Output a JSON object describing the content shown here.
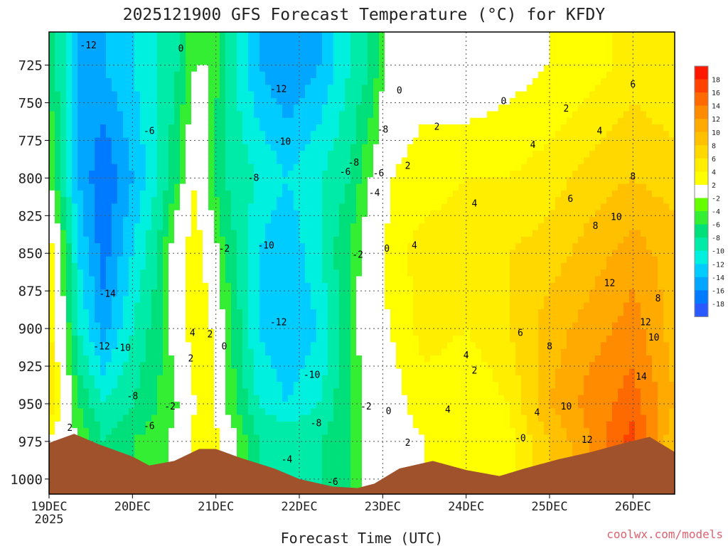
{
  "chart_data": {
    "type": "heatmap",
    "title": "2025121900 GFS Forecast Temperature (°C) for KFDY",
    "xlabel": "Forecast Time (UTC)",
    "ylabel": "",
    "credit": "coolwx.com/models",
    "x_tick_labels": [
      "19DEC",
      "20DEC",
      "21DEC",
      "22DEC",
      "23DEC",
      "24DEC",
      "25DEC",
      "26DEC"
    ],
    "x_year_label": "2025",
    "x_days_from_19dec": [
      0,
      1,
      2,
      3,
      4,
      5,
      6,
      7
    ],
    "xlim_days": [
      0,
      7.5
    ],
    "y_tick_labels": [
      "725",
      "750",
      "775",
      "800",
      "825",
      "850",
      "875",
      "900",
      "925",
      "950",
      "975",
      "1000"
    ],
    "y_values_hpa": [
      725,
      750,
      775,
      800,
      825,
      850,
      875,
      900,
      925,
      950,
      975,
      1000
    ],
    "ylim_hpa": [
      1010,
      703
    ],
    "grid": true,
    "colorbar": {
      "levels": [
        18,
        16,
        14,
        12,
        10,
        8,
        6,
        4,
        2,
        -2,
        -4,
        -6,
        -8,
        -10,
        -12,
        -14,
        -16,
        -18
      ],
      "colors": [
        "#ff1800",
        "#ff4200",
        "#ff6a00",
        "#ff8c00",
        "#ffaa00",
        "#ffc000",
        "#ffd800",
        "#ffee00",
        "#ffff00",
        "#ffffff",
        "#66ff00",
        "#33ee33",
        "#00e07a",
        "#00eaa8",
        "#00f0e0",
        "#00ccff",
        "#00a6ff",
        "#007aff",
        "#2a5aff"
      ]
    },
    "temperature_columns": [
      {
        "day": 0.0,
        "t725": -4,
        "t800": -2,
        "t850": 4,
        "t900": 5,
        "t950": 6,
        "t975": 2
      },
      {
        "day": 0.35,
        "t725": -12,
        "t800": -12,
        "t850": -10,
        "t900": -8,
        "t950": -4,
        "t975": -2
      },
      {
        "day": 0.65,
        "t725": -12,
        "t800": -16,
        "t850": -15,
        "t900": -13,
        "t950": -8,
        "t975": -6
      },
      {
        "day": 1.0,
        "t725": -10,
        "t800": -12,
        "t850": -10,
        "t900": -8,
        "t950": -6,
        "t975": -4
      },
      {
        "day": 1.3,
        "t725": -8,
        "t800": -8,
        "t850": -6,
        "t900": -5,
        "t950": -4,
        "t975": -3
      },
      {
        "day": 1.55,
        "t725": -6,
        "t800": -4,
        "t850": 1,
        "t900": 0,
        "t950": -2,
        "t975": -1
      },
      {
        "day": 1.75,
        "t725": -2,
        "t800": 2,
        "t850": 4,
        "t900": 4,
        "t950": 2,
        "t975": 3
      },
      {
        "day": 1.95,
        "t725": -2,
        "t800": -4,
        "t850": 0,
        "t900": 2,
        "t950": 2,
        "t975": 4
      },
      {
        "day": 2.1,
        "t725": -6,
        "t800": -6,
        "t850": -4,
        "t900": -2,
        "t950": -2,
        "t975": 1
      },
      {
        "day": 2.5,
        "t725": -12,
        "t800": -8,
        "t850": -10,
        "t900": -10,
        "t950": -8,
        "t975": -6
      },
      {
        "day": 2.85,
        "t725": -14,
        "t800": -10,
        "t850": -12,
        "t900": -12,
        "t950": -10,
        "t975": -6
      },
      {
        "day": 3.25,
        "t725": -12,
        "t800": -8,
        "t850": -8,
        "t900": -10,
        "t950": -8,
        "t975": -6
      },
      {
        "day": 3.6,
        "t725": -8,
        "t800": -6,
        "t850": -4,
        "t900": -4,
        "t950": -4,
        "t975": -4
      },
      {
        "day": 3.85,
        "t725": -6,
        "t800": -2,
        "t850": 0,
        "t900": 1,
        "t950": -1,
        "t975": 0
      },
      {
        "day": 4.1,
        "t725": 0,
        "t800": 2,
        "t850": 3,
        "t900": 2,
        "t950": 1,
        "t975": 1
      },
      {
        "day": 4.5,
        "t725": 1,
        "t800": 3,
        "t850": 5,
        "t900": 5,
        "t950": 3,
        "t975": 2
      },
      {
        "day": 5.0,
        "t725": 0,
        "t800": 4,
        "t850": 5,
        "t900": 4,
        "t950": 2,
        "t975": 3
      },
      {
        "day": 5.5,
        "t725": 1,
        "t800": 4,
        "t850": 6,
        "t900": 6,
        "t950": 4,
        "t975": 3
      },
      {
        "day": 6.0,
        "t725": 2,
        "t800": 5,
        "t850": 7,
        "t900": 9,
        "t950": 10,
        "t975": 8
      },
      {
        "day": 6.5,
        "t725": 3,
        "t800": 7,
        "t850": 9,
        "t900": 11,
        "t950": 13,
        "t975": 12
      },
      {
        "day": 7.0,
        "t725": 5,
        "t800": 8,
        "t850": 11,
        "t900": 13,
        "t950": 15,
        "t975": 17
      },
      {
        "day": 7.5,
        "t725": 4,
        "t800": 7,
        "t850": 9,
        "t900": 9,
        "t950": 10,
        "t975": 8
      }
    ],
    "terrain_surface_hpa": [
      {
        "day": 0.0,
        "p": 976
      },
      {
        "day": 0.3,
        "p": 970
      },
      {
        "day": 0.6,
        "p": 977
      },
      {
        "day": 1.0,
        "p": 985
      },
      {
        "day": 1.2,
        "p": 991
      },
      {
        "day": 1.5,
        "p": 988
      },
      {
        "day": 1.8,
        "p": 980
      },
      {
        "day": 2.0,
        "p": 980
      },
      {
        "day": 2.3,
        "p": 986
      },
      {
        "day": 2.7,
        "p": 993
      },
      {
        "day": 3.0,
        "p": 1000
      },
      {
        "day": 3.4,
        "p": 1005
      },
      {
        "day": 3.7,
        "p": 1006
      },
      {
        "day": 3.9,
        "p": 1003
      },
      {
        "day": 4.2,
        "p": 993
      },
      {
        "day": 4.6,
        "p": 988
      },
      {
        "day": 5.0,
        "p": 994
      },
      {
        "day": 5.4,
        "p": 998
      },
      {
        "day": 5.7,
        "p": 993
      },
      {
        "day": 6.1,
        "p": 987
      },
      {
        "day": 6.5,
        "p": 982
      },
      {
        "day": 6.9,
        "p": 976
      },
      {
        "day": 7.2,
        "p": 972
      },
      {
        "day": 7.5,
        "p": 982
      }
    ],
    "contour_labels": [
      {
        "text": "-12",
        "day": 0.47,
        "p": 712
      },
      {
        "text": "0",
        "day": 1.58,
        "p": 714
      },
      {
        "text": "-12",
        "day": 2.75,
        "p": 741
      },
      {
        "text": "0",
        "day": 4.2,
        "p": 742
      },
      {
        "text": "0",
        "day": 5.45,
        "p": 749
      },
      {
        "text": "2",
        "day": 6.2,
        "p": 754
      },
      {
        "text": "-6",
        "day": 1.2,
        "p": 769
      },
      {
        "text": "-10",
        "day": 2.8,
        "p": 776
      },
      {
        "text": "-8",
        "day": 4.0,
        "p": 768
      },
      {
        "text": "2",
        "day": 4.65,
        "p": 766
      },
      {
        "text": "4",
        "day": 5.8,
        "p": 778
      },
      {
        "text": "4",
        "day": 6.6,
        "p": 769
      },
      {
        "text": "6",
        "day": 7.0,
        "p": 738
      },
      {
        "text": "-8",
        "day": 3.65,
        "p": 790
      },
      {
        "text": "-6",
        "day": 3.55,
        "p": 796
      },
      {
        "text": "2",
        "day": 4.3,
        "p": 792
      },
      {
        "text": "-8",
        "day": 2.45,
        "p": 800
      },
      {
        "text": "-6",
        "day": 3.95,
        "p": 797
      },
      {
        "text": "-4",
        "day": 3.9,
        "p": 810
      },
      {
        "text": "8",
        "day": 7.0,
        "p": 799
      },
      {
        "text": "6",
        "day": 6.25,
        "p": 814
      },
      {
        "text": "4",
        "day": 5.1,
        "p": 817
      },
      {
        "text": "10",
        "day": 6.8,
        "p": 826
      },
      {
        "text": "8",
        "day": 6.55,
        "p": 832
      },
      {
        "text": "4",
        "day": 4.38,
        "p": 845
      },
      {
        "text": "-10",
        "day": 2.6,
        "p": 845
      },
      {
        "text": "0",
        "day": 4.05,
        "p": 847
      },
      {
        "text": "-2",
        "day": 2.1,
        "p": 847
      },
      {
        "text": "-2",
        "day": 3.7,
        "p": 851
      },
      {
        "text": "-14",
        "day": 0.7,
        "p": 877
      },
      {
        "text": "12",
        "day": 6.72,
        "p": 870
      },
      {
        "text": "8",
        "day": 7.3,
        "p": 880
      },
      {
        "text": "-12",
        "day": 2.75,
        "p": 896
      },
      {
        "text": "4",
        "day": 1.72,
        "p": 903
      },
      {
        "text": "2",
        "day": 1.93,
        "p": 904
      },
      {
        "text": "12",
        "day": 7.15,
        "p": 896
      },
      {
        "text": "6",
        "day": 5.65,
        "p": 903
      },
      {
        "text": "10",
        "day": 7.25,
        "p": 906
      },
      {
        "text": "-12",
        "day": 0.63,
        "p": 912
      },
      {
        "text": "-10",
        "day": 0.88,
        "p": 913
      },
      {
        "text": "0",
        "day": 2.1,
        "p": 912
      },
      {
        "text": "8",
        "day": 6.0,
        "p": 912
      },
      {
        "text": "4",
        "day": 5.0,
        "p": 918
      },
      {
        "text": "2",
        "day": 1.7,
        "p": 920
      },
      {
        "text": "2",
        "day": 5.1,
        "p": 928
      },
      {
        "text": "-10",
        "day": 3.15,
        "p": 931
      },
      {
        "text": "-8",
        "day": 1.0,
        "p": 945
      },
      {
        "text": "14",
        "day": 7.1,
        "p": 932
      },
      {
        "text": "-2",
        "day": 1.45,
        "p": 952
      },
      {
        "text": "-2",
        "day": 3.8,
        "p": 952
      },
      {
        "text": "0",
        "day": 4.07,
        "p": 955
      },
      {
        "text": "4",
        "day": 4.78,
        "p": 954
      },
      {
        "text": "10",
        "day": 6.2,
        "p": 952
      },
      {
        "text": "4",
        "day": 5.85,
        "p": 956
      },
      {
        "text": "-8",
        "day": 3.2,
        "p": 963
      },
      {
        "text": "-6",
        "day": 1.2,
        "p": 965
      },
      {
        "text": "12",
        "day": 6.45,
        "p": 974
      },
      {
        "text": "-0",
        "day": 5.65,
        "p": 973
      },
      {
        "text": "2",
        "day": 4.3,
        "p": 976
      },
      {
        "text": "2",
        "day": 0.25,
        "p": 966
      },
      {
        "text": "-4",
        "day": 2.85,
        "p": 987
      },
      {
        "text": "-6",
        "day": 3.4,
        "p": 1002
      }
    ]
  }
}
